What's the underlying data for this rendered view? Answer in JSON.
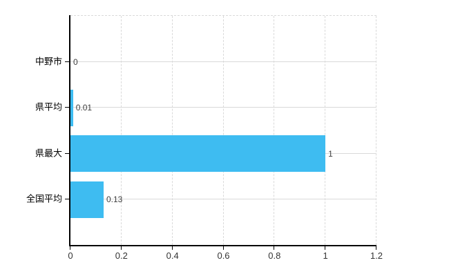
{
  "chart_data": {
    "type": "bar",
    "orientation": "horizontal",
    "title": "",
    "xlabel": "",
    "ylabel": "",
    "categories": [
      "中野市",
      "県平均",
      "県最大",
      "全国平均"
    ],
    "values": [
      0,
      0.01,
      1,
      0.13
    ],
    "value_labels": [
      "0",
      "0.01",
      "1",
      "0.13"
    ],
    "xlim": [
      0,
      1.2
    ],
    "x_ticks": [
      0,
      0.2,
      0.4,
      0.6,
      0.8,
      1,
      1.2
    ],
    "x_tick_labels": [
      "0",
      "0.2",
      "0.4",
      "0.6",
      "0.8",
      "1",
      "1.2"
    ],
    "grid": true,
    "legend": false,
    "colors": {
      "bar": "#3ebcf1",
      "axis": "#000000",
      "gridline": "#d9d9d9",
      "tick_text": "#333333",
      "category_text": "#000000",
      "background": "#ffffff"
    }
  }
}
